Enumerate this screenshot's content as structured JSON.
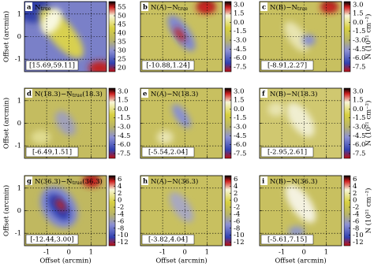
{
  "chart_data": [
    {
      "type": "heatmap",
      "letter": "a",
      "label": [
        "N",
        "true"
      ],
      "range_label": "[15.69,59.11]",
      "xlim": [
        -2,
        1.7
      ],
      "ylim": [
        -1.55,
        1.55
      ],
      "xticks": [
        -1,
        0,
        1
      ],
      "yticks": [
        -1,
        0,
        1
      ],
      "clim": [
        17.7,
        58.2
      ],
      "cticks": [
        20,
        25,
        30,
        35,
        40,
        45,
        50,
        55
      ],
      "ylabel": "Offset (arcmin)"
    },
    {
      "type": "heatmap",
      "letter": "b",
      "label": [
        "N(A)−N",
        "true"
      ],
      "range_label": "[-10.88,1.24]",
      "xlim": [
        -2,
        1.7
      ],
      "ylim": [
        -1.55,
        1.55
      ],
      "xticks": [
        -1,
        0,
        1
      ],
      "yticks": [
        -1,
        0,
        1
      ],
      "clim": [
        -8.3,
        3.5
      ],
      "cticks": [
        {
          "value": 3,
          "label": "3.0"
        },
        1.5,
        {
          "value": 0,
          "label": "0.0"
        },
        -1.5,
        {
          "value": -3,
          "label": "-3.0"
        },
        -4.5,
        {
          "value": -6,
          "label": "-6.0"
        },
        -7.5
      ]
    },
    {
      "type": "heatmap",
      "letter": "c",
      "label": [
        "N(B)−N",
        "true"
      ],
      "range_label": "[-8.91,2.27]",
      "xlim": [
        -2,
        1.7
      ],
      "ylim": [
        -1.55,
        1.55
      ],
      "xticks": [
        -1,
        0,
        1
      ],
      "yticks": [
        -1,
        0,
        1
      ],
      "clim": [
        -8.3,
        3.5
      ],
      "cticks": [
        {
          "value": 3,
          "label": "3.0"
        },
        1.5,
        {
          "value": 0,
          "label": "0.0"
        },
        -1.5,
        {
          "value": -3,
          "label": "-3.0"
        },
        -4.5,
        {
          "value": -6,
          "label": "-6.0"
        },
        -7.5
      ],
      "cbar_label": "N (10²¹ cm⁻²)"
    },
    {
      "type": "heatmap",
      "letter": "d",
      "label": [
        "N(18.3)−N",
        "true",
        "(18.3)"
      ],
      "range_label": "[-6.49,1.51]",
      "xlim": [
        -2,
        1.7
      ],
      "ylim": [
        -1.55,
        1.55
      ],
      "xticks": [
        -1,
        0,
        1
      ],
      "yticks": [
        -1,
        0,
        1
      ],
      "clim": [
        -8.3,
        3.5
      ],
      "cticks": [
        {
          "value": 3,
          "label": "3.0"
        },
        1.5,
        {
          "value": 0,
          "label": "0.0"
        },
        -1.5,
        {
          "value": -3,
          "label": "-3.0"
        },
        -4.5,
        {
          "value": -6,
          "label": "-6.0"
        },
        -7.5
      ],
      "ylabel": "Offset (arcmin)"
    },
    {
      "type": "heatmap",
      "letter": "e",
      "label": [
        "N(A)−N(18.3)"
      ],
      "range_label": "[-5.54,2.04]",
      "xlim": [
        -2,
        1.7
      ],
      "ylim": [
        -1.55,
        1.55
      ],
      "xticks": [
        -1,
        0,
        1
      ],
      "yticks": [
        -1,
        0,
        1
      ],
      "clim": [
        -8.3,
        3.5
      ],
      "cticks": [
        {
          "value": 3,
          "label": "3.0"
        },
        1.5,
        {
          "value": 0,
          "label": "0.0"
        },
        -1.5,
        {
          "value": -3,
          "label": "-3.0"
        },
        -4.5,
        {
          "value": -6,
          "label": "-6.0"
        },
        -7.5
      ]
    },
    {
      "type": "heatmap",
      "letter": "f",
      "label": [
        "N(B)−N(18.3)"
      ],
      "range_label": "[-2.95,2.61]",
      "xlim": [
        -2,
        1.7
      ],
      "ylim": [
        -1.55,
        1.55
      ],
      "xticks": [
        -1,
        0,
        1
      ],
      "yticks": [
        -1,
        0,
        1
      ],
      "clim": [
        -8.3,
        3.5
      ],
      "cticks": [
        {
          "value": 3,
          "label": "3.0"
        },
        1.5,
        {
          "value": 0,
          "label": "0.0"
        },
        -1.5,
        {
          "value": -3,
          "label": "-3.0"
        },
        -4.5,
        {
          "value": -6,
          "label": "-6.0"
        },
        -7.5
      ],
      "cbar_label": "N (10²¹ cm⁻²)"
    },
    {
      "type": "heatmap",
      "letter": "g",
      "label": [
        "N(36.3)−N",
        "true",
        "(36.3)"
      ],
      "range_label": "[-12.44,3.00]",
      "xlim": [
        -2,
        1.7
      ],
      "ylim": [
        -1.55,
        1.55
      ],
      "xticks": [
        -1,
        0,
        1
      ],
      "yticks": [
        -1,
        0,
        1
      ],
      "clim": [
        -13,
        7
      ],
      "cticks": [
        6,
        4,
        2,
        0,
        -2,
        -4,
        -6,
        -8,
        -10,
        -12
      ],
      "ylabel": "Offset (arcmin)",
      "xlabel": "Offset (arcmin)"
    },
    {
      "type": "heatmap",
      "letter": "h",
      "label": [
        "N(A)−N(36.3)"
      ],
      "range_label": "[-3.82,4.04]",
      "xlim": [
        -2,
        1.7
      ],
      "ylim": [
        -1.55,
        1.55
      ],
      "xticks": [
        -1,
        0,
        1
      ],
      "yticks": [
        -1,
        0,
        1
      ],
      "clim": [
        -13,
        7
      ],
      "cticks": [
        6,
        4,
        2,
        0,
        -2,
        -4,
        -6,
        -8,
        -10,
        -12
      ],
      "xlabel": "Offset (arcmin)"
    },
    {
      "type": "heatmap",
      "letter": "i",
      "label": [
        "N(B)−N(36.3)"
      ],
      "range_label": "[-5.61,7.15]",
      "xlim": [
        -2,
        1.7
      ],
      "ylim": [
        -1.55,
        1.55
      ],
      "xticks": [
        -1,
        0,
        1
      ],
      "yticks": [
        -1,
        0,
        1
      ],
      "clim": [
        -13,
        7
      ],
      "cticks": [
        6,
        4,
        2,
        0,
        -2,
        -4,
        -6,
        -8,
        -10,
        -12
      ],
      "xlabel": "Offset (arcmin)",
      "cbar_label": "N (10²¹ cm⁻²)"
    }
  ]
}
